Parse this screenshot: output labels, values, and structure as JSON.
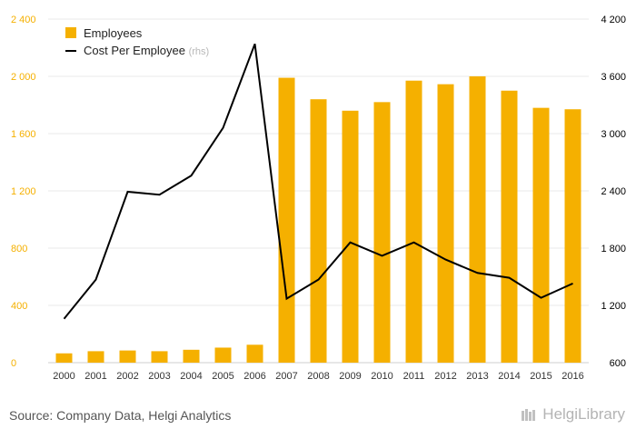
{
  "chart_data": {
    "type": "bar+line",
    "categories": [
      "2000",
      "2001",
      "2002",
      "2003",
      "2004",
      "2005",
      "2006",
      "2007",
      "2008",
      "2009",
      "2010",
      "2011",
      "2012",
      "2013",
      "2014",
      "2015",
      "2016"
    ],
    "series": [
      {
        "name": "Employees",
        "type": "bar",
        "axis": "left",
        "color": "#F5B000",
        "values": [
          65,
          80,
          85,
          80,
          90,
          105,
          125,
          1990,
          1840,
          1760,
          1820,
          1970,
          1945,
          2000,
          1900,
          1780,
          1770
        ]
      },
      {
        "name": "Cost Per Employee",
        "legend_suffix": "(rhs)",
        "type": "line",
        "axis": "right",
        "color": "#000000",
        "values": [
          1060,
          1470,
          2390,
          2360,
          2560,
          3060,
          3940,
          1270,
          1470,
          1860,
          1720,
          1860,
          1680,
          1540,
          1490,
          1280,
          1430
        ]
      }
    ],
    "y_left": {
      "min": 0,
      "max": 2400,
      "ticks": [
        0,
        400,
        800,
        1200,
        1600,
        2000,
        2400
      ],
      "tick_labels": [
        "0",
        "400",
        "800",
        "1 200",
        "1 600",
        "2 000",
        "2 400"
      ],
      "label_color": "#F5B000"
    },
    "y_right": {
      "min": 600,
      "max": 4200,
      "ticks": [
        600,
        1200,
        1800,
        2400,
        3000,
        3600,
        4200
      ],
      "tick_labels": [
        "600",
        "1 200",
        "1 800",
        "2 400",
        "3 000",
        "3 600",
        "4 200"
      ],
      "label_color": "#000000"
    },
    "grid": true,
    "legend_position": "top-left"
  },
  "footer": {
    "source": "Source: Company Data, Helgi Analytics",
    "brand": "HelgiLibrary"
  }
}
